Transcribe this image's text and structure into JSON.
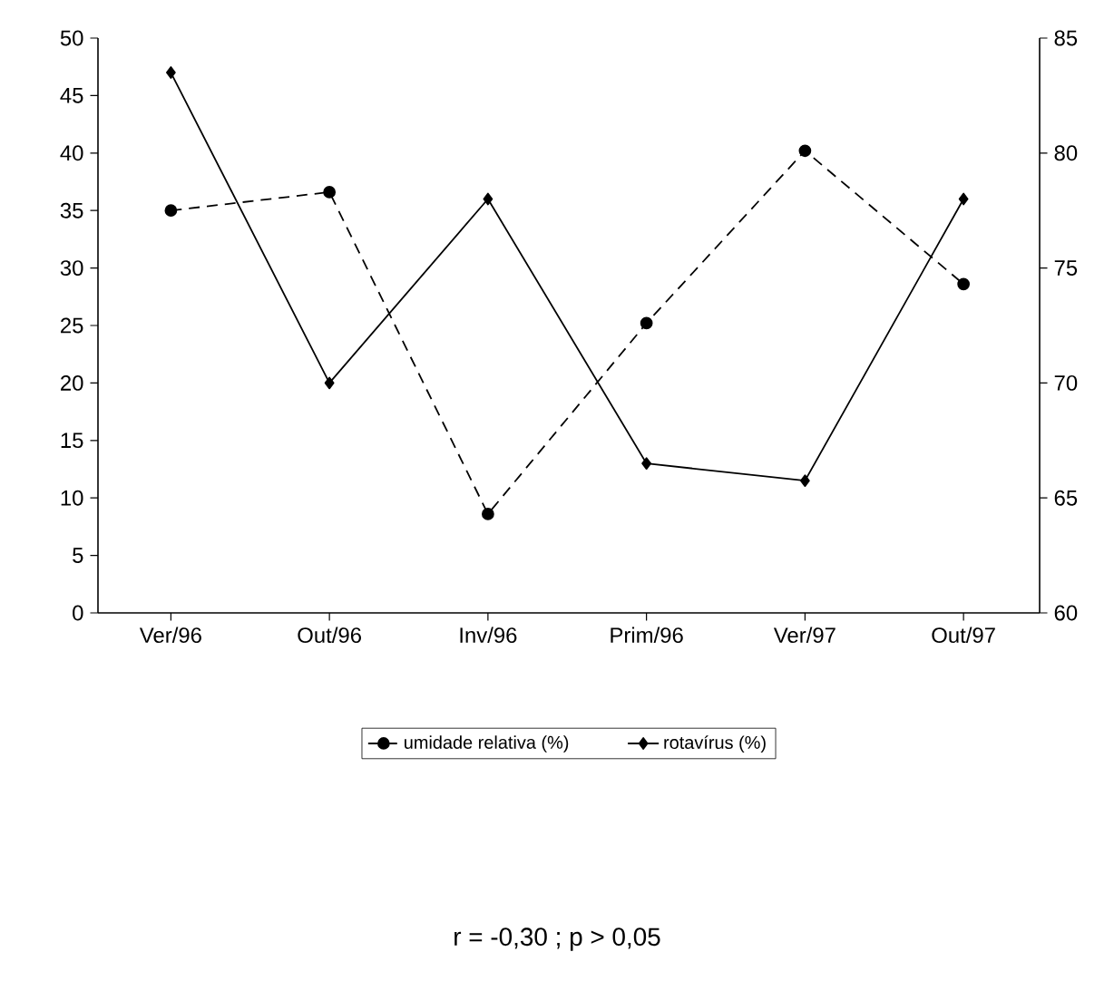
{
  "chart_data": {
    "type": "line",
    "categories": [
      "Ver/96",
      "Out/96",
      "Inv/96",
      "Prim/96",
      "Ver/97",
      "Out/97"
    ],
    "series": [
      {
        "name": "umidade relativa (%)",
        "color": "#000000",
        "axis": "y2",
        "marker": "circle",
        "line_style": "dashed",
        "values": [
          77.5,
          78.3,
          64.3,
          72.6,
          80.1,
          74.3
        ]
      },
      {
        "name": "rotavírus (%)",
        "color": "#000000",
        "marker": "diamond",
        "line_style": "solid",
        "values": [
          47,
          20,
          36,
          13,
          11.5,
          36
        ]
      }
    ],
    "ylim": [
      0,
      50
    ],
    "yticks": [
      0,
      5,
      10,
      15,
      20,
      25,
      30,
      35,
      40,
      45,
      50
    ],
    "y2lim": [
      60,
      85
    ],
    "y2ticks": [
      60,
      65,
      70,
      75,
      80,
      85
    ],
    "legend": "bottom",
    "annotations": [
      "r = -0,30 ; p > 0,05"
    ]
  }
}
